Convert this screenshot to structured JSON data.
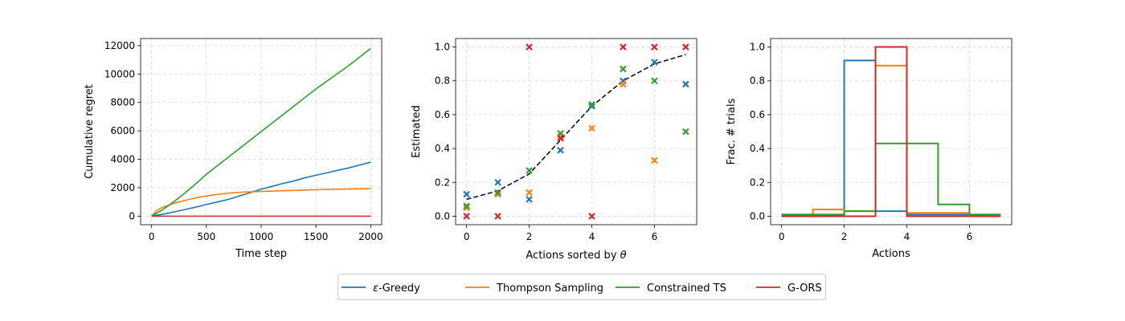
{
  "colors": {
    "egreedy": "#1f77b4",
    "thompson": "#ff7f0e",
    "constrained_ts": "#2ca02c",
    "gors": "#d62728",
    "reference": "#000000"
  },
  "legend": [
    {
      "key": "egreedy",
      "label": "ε-Greedy",
      "label_prefix": "ε",
      "label_rest": "-Greedy"
    },
    {
      "key": "thompson",
      "label": "Thompson Sampling"
    },
    {
      "key": "constrained_ts",
      "label": "Constrained TS"
    },
    {
      "key": "gors",
      "label": "G-ORS"
    }
  ],
  "chart_data": [
    {
      "type": "line",
      "xlabel": "Time step",
      "ylabel": "Cumulative regret",
      "xlim": [
        -100,
        2100
      ],
      "ylim": [
        -600,
        12500
      ],
      "xticks": [
        0,
        500,
        1000,
        1500,
        2000
      ],
      "yticks": [
        0,
        2000,
        4000,
        6000,
        8000,
        10000,
        12000
      ],
      "grid": true,
      "series": [
        {
          "key": "egreedy",
          "x": [
            0,
            100,
            200,
            300,
            400,
            500,
            600,
            700,
            800,
            900,
            1000,
            1100,
            1200,
            1300,
            1400,
            1500,
            1600,
            1700,
            1800,
            1900,
            2000
          ],
          "y": [
            0,
            130,
            290,
            460,
            630,
            820,
            1000,
            1180,
            1420,
            1650,
            1900,
            2100,
            2300,
            2480,
            2700,
            2880,
            3050,
            3230,
            3400,
            3600,
            3800
          ]
        },
        {
          "key": "thompson",
          "x": [
            0,
            50,
            100,
            200,
            300,
            400,
            500,
            600,
            700,
            800,
            1000,
            1200,
            1400,
            1600,
            1800,
            2000
          ],
          "y": [
            0,
            400,
            620,
            900,
            1100,
            1280,
            1420,
            1530,
            1620,
            1680,
            1740,
            1790,
            1840,
            1880,
            1910,
            1940
          ]
        },
        {
          "key": "constrained_ts",
          "x": [
            0,
            100,
            200,
            300,
            400,
            500,
            600,
            700,
            800,
            900,
            1000,
            1100,
            1200,
            1300,
            1400,
            1500,
            1600,
            1700,
            1800,
            1900,
            2000
          ],
          "y": [
            0,
            450,
            1000,
            1600,
            2250,
            2950,
            3550,
            4150,
            4750,
            5350,
            5950,
            6550,
            7150,
            7750,
            8350,
            8950,
            9500,
            10050,
            10600,
            11200,
            11800
          ]
        },
        {
          "key": "gors",
          "x": [
            0,
            2000
          ],
          "y": [
            0,
            0
          ]
        }
      ]
    },
    {
      "type": "scatter",
      "xlabel": "Actions sorted by θ",
      "xlabel_prefix": "Actions sorted by ",
      "xlabel_symbol": "θ",
      "ylabel": "Estimated",
      "xlim": [
        -0.35,
        7.35
      ],
      "ylim": [
        -0.05,
        1.05
      ],
      "xticks": [
        0,
        2,
        4,
        6
      ],
      "yticks": [
        0.0,
        0.2,
        0.4,
        0.6,
        0.8,
        1.0
      ],
      "grid": true,
      "reference_line": {
        "x": [
          0,
          1,
          2,
          3,
          4,
          5,
          6,
          7
        ],
        "y": [
          0.1,
          0.15,
          0.25,
          0.45,
          0.65,
          0.8,
          0.9,
          0.955
        ],
        "style": "dashed"
      },
      "series": [
        {
          "key": "egreedy",
          "marker": "x",
          "x": [
            0,
            1,
            2,
            3,
            4,
            5,
            6,
            7
          ],
          "y": [
            0.13,
            0.2,
            0.1,
            0.39,
            0.65,
            0.8,
            0.91,
            0.78
          ]
        },
        {
          "key": "thompson",
          "marker": "x",
          "x": [
            0,
            1,
            2,
            3,
            4,
            5,
            6,
            7
          ],
          "y": [
            0.05,
            0.13,
            0.14,
            0.47,
            0.52,
            0.78,
            0.33,
            0.5
          ]
        },
        {
          "key": "constrained_ts",
          "marker": "x",
          "x": [
            0,
            1,
            2,
            3,
            4,
            5,
            6,
            7
          ],
          "y": [
            0.06,
            0.14,
            0.27,
            0.49,
            0.66,
            0.87,
            0.8,
            0.5
          ]
        },
        {
          "key": "gors",
          "marker": "x",
          "x": [
            0,
            1,
            2,
            3,
            4,
            5,
            6,
            7
          ],
          "y": [
            0.0,
            0.0,
            1.0,
            0.46,
            0.0,
            1.0,
            1.0,
            1.0
          ]
        }
      ]
    },
    {
      "type": "step",
      "xlabel": "Actions",
      "ylabel": "Frac. # trials",
      "xlim": [
        -0.35,
        7.35
      ],
      "ylim": [
        -0.05,
        1.05
      ],
      "xticks": [
        0,
        2,
        4,
        6
      ],
      "yticks": [
        0.0,
        0.2,
        0.4,
        0.6,
        0.8,
        1.0
      ],
      "grid": true,
      "bin_edges": [
        0,
        1,
        2,
        3,
        4,
        5,
        6,
        7
      ],
      "series": [
        {
          "key": "egreedy",
          "values": [
            0.01,
            0.01,
            0.92,
            0.03,
            0.01,
            0.01,
            0.01
          ]
        },
        {
          "key": "thompson",
          "values": [
            0.0,
            0.04,
            0.03,
            0.89,
            0.02,
            0.02,
            0.01
          ]
        },
        {
          "key": "constrained_ts",
          "values": [
            0.01,
            0.01,
            0.03,
            0.43,
            0.43,
            0.07,
            0.01
          ]
        },
        {
          "key": "gors",
          "values": [
            0.0,
            0.0,
            0.0,
            1.0,
            0.0,
            0.0,
            0.0
          ]
        }
      ]
    }
  ]
}
